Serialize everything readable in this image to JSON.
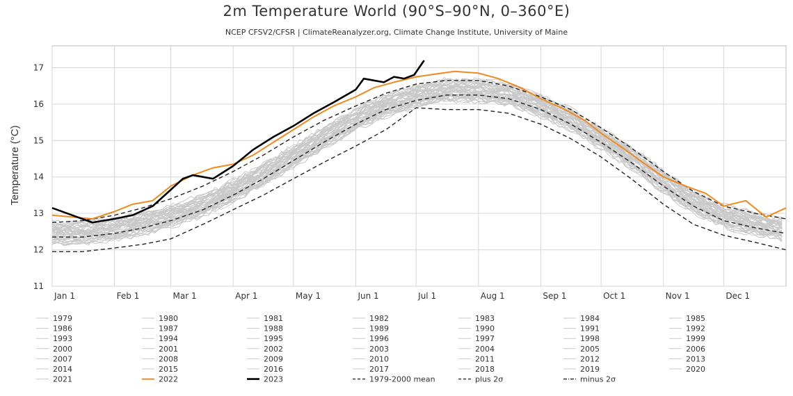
{
  "chart_data": {
    "type": "line",
    "title": "2m Temperature World (90°S–90°N, 0–360°E)",
    "subtitle": "NCEP CFSV2/CFSR | ClimateReanalyzer.org, Climate Change Institute, University of Maine",
    "ylabel": "Temperature (°C)",
    "xlabel": "",
    "ylim": [
      11,
      17.6
    ],
    "xlim": [
      0,
      365
    ],
    "yticks": [
      11,
      12,
      13,
      14,
      15,
      16,
      17
    ],
    "xticks": [
      {
        "label": "Jan 1",
        "day": 0
      },
      {
        "label": "Feb 1",
        "day": 31
      },
      {
        "label": "Mar 1",
        "day": 59
      },
      {
        "label": "Apr 1",
        "day": 90
      },
      {
        "label": "May 1",
        "day": 120
      },
      {
        "label": "Jun 1",
        "day": 151
      },
      {
        "label": "Jul 1",
        "day": 181
      },
      {
        "label": "Aug 1",
        "day": 212
      },
      {
        "label": "Sep 1",
        "day": 243
      },
      {
        "label": "Oct 1",
        "day": 273
      },
      {
        "label": "Nov 1",
        "day": 304
      },
      {
        "label": "Dec 1",
        "day": 334
      }
    ],
    "grid": true,
    "legend_placement": "bottom",
    "colors": {
      "background_years": "#c8c8c8",
      "y2022": "#f08a1c",
      "y2023": "#000000",
      "reference": "#222222",
      "grid": "#d6d6d6"
    },
    "legend": [
      "1979",
      "1980",
      "1981",
      "1982",
      "1983",
      "1984",
      "1985",
      "1986",
      "1987",
      "1988",
      "1989",
      "1990",
      "1991",
      "1992",
      "1993",
      "1994",
      "1995",
      "1996",
      "1997",
      "1998",
      "1999",
      "2000",
      "2001",
      "2002",
      "2003",
      "2004",
      "2005",
      "2006",
      "2007",
      "2008",
      "2009",
      "2010",
      "2011",
      "2012",
      "2013",
      "2014",
      "2015",
      "2016",
      "2017",
      "2018",
      "2019",
      "2020",
      "2021",
      "2022",
      "2023",
      "1979-2000 mean",
      "plus 2σ",
      "minus 2σ"
    ],
    "series": [
      {
        "name": "1979-2000 mean",
        "style": "dashed",
        "x": [
          0,
          15,
          31,
          45,
          59,
          75,
          90,
          105,
          120,
          135,
          151,
          166,
          181,
          196,
          212,
          227,
          243,
          258,
          273,
          288,
          304,
          319,
          334,
          350,
          365
        ],
        "y": [
          12.35,
          12.35,
          12.45,
          12.6,
          12.8,
          13.1,
          13.5,
          13.95,
          14.45,
          14.95,
          15.45,
          15.85,
          16.1,
          16.25,
          16.25,
          16.15,
          15.85,
          15.45,
          14.95,
          14.4,
          13.75,
          13.2,
          12.8,
          12.6,
          12.45
        ]
      },
      {
        "name": "plus 2σ",
        "style": "dashed",
        "x": [
          0,
          15,
          31,
          45,
          59,
          75,
          90,
          105,
          120,
          135,
          151,
          166,
          181,
          196,
          212,
          227,
          243,
          258,
          273,
          288,
          304,
          319,
          334,
          350,
          365
        ],
        "y": [
          12.75,
          12.8,
          12.95,
          13.15,
          13.4,
          13.75,
          14.15,
          14.6,
          15.1,
          15.55,
          15.95,
          16.3,
          16.55,
          16.65,
          16.65,
          16.5,
          16.2,
          15.85,
          15.35,
          14.8,
          14.15,
          13.6,
          13.2,
          13.0,
          12.85
        ]
      },
      {
        "name": "minus 2σ",
        "style": "dashed",
        "x": [
          0,
          15,
          31,
          45,
          59,
          75,
          90,
          105,
          120,
          135,
          151,
          166,
          181,
          196,
          212,
          227,
          243,
          258,
          273,
          288,
          304,
          319,
          334,
          350,
          365
        ],
        "y": [
          11.95,
          11.95,
          12.05,
          12.15,
          12.3,
          12.7,
          13.1,
          13.5,
          13.95,
          14.4,
          14.85,
          15.3,
          15.9,
          15.85,
          15.85,
          15.75,
          15.45,
          15.05,
          14.55,
          13.95,
          13.25,
          12.7,
          12.4,
          12.2,
          12.0
        ]
      },
      {
        "name": "2022",
        "style": "solid",
        "x": [
          0,
          10,
          20,
          31,
          40,
          50,
          59,
          70,
          80,
          90,
          100,
          110,
          120,
          130,
          140,
          151,
          160,
          170,
          181,
          190,
          200,
          212,
          222,
          233,
          243,
          255,
          265,
          273,
          285,
          295,
          304,
          315,
          325,
          334,
          345,
          355,
          365
        ],
        "y": [
          12.95,
          12.9,
          12.85,
          13.05,
          13.25,
          13.35,
          13.75,
          14.05,
          14.25,
          14.35,
          14.6,
          14.95,
          15.3,
          15.65,
          15.95,
          16.2,
          16.45,
          16.6,
          16.75,
          16.82,
          16.9,
          16.85,
          16.7,
          16.45,
          16.15,
          15.85,
          15.55,
          15.2,
          14.75,
          14.35,
          14.0,
          13.75,
          13.55,
          13.2,
          13.35,
          12.9,
          13.15
        ]
      },
      {
        "name": "2023",
        "style": "solid",
        "x": [
          0,
          10,
          20,
          31,
          40,
          50,
          59,
          65,
          70,
          75,
          80,
          90,
          100,
          110,
          120,
          130,
          140,
          151,
          155,
          160,
          165,
          170,
          175,
          180,
          185
        ],
        "y": [
          13.15,
          12.95,
          12.75,
          12.85,
          12.95,
          13.2,
          13.65,
          13.95,
          14.05,
          14.0,
          13.95,
          14.3,
          14.75,
          15.1,
          15.4,
          15.75,
          16.05,
          16.4,
          16.7,
          16.65,
          16.6,
          16.75,
          16.7,
          16.8,
          17.2
        ]
      }
    ]
  }
}
